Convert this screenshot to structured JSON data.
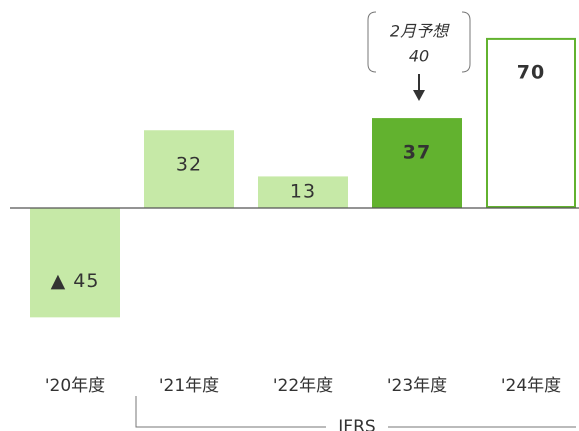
{
  "chart_data": {
    "type": "bar",
    "categories": [
      "'20年度",
      "'21年度",
      "'22年度",
      "'23年度",
      "'24年度"
    ],
    "values": [
      -45,
      32,
      13,
      37,
      70
    ],
    "value_labels": [
      "▲ 45",
      "32",
      "13",
      "37",
      "70"
    ],
    "colors": [
      "#c6e9a7",
      "#c6e9a7",
      "#c6e9a7",
      "#62b22f",
      "#ffffff"
    ],
    "stroke_color": "#62b22f",
    "highlight": [
      false,
      false,
      false,
      true,
      true
    ],
    "annotation": {
      "text": "2月予想",
      "value": 40
    },
    "group_label": "IFRS"
  }
}
